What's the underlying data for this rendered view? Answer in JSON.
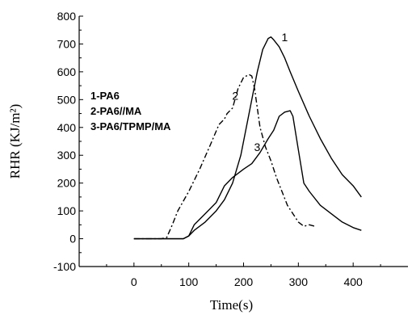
{
  "chart_data": {
    "type": "line",
    "xlabel": "Time(s)",
    "ylabel": "RHR (KJ/m²)",
    "xlim": [
      -100,
      500
    ],
    "ylim": [
      -100,
      800
    ],
    "x_ticks": [
      0,
      100,
      200,
      300,
      400
    ],
    "y_ticks": [
      -100,
      0,
      100,
      200,
      300,
      400,
      500,
      600,
      700,
      800
    ],
    "grid": false,
    "legend_entries": [
      "1-PA6",
      "2-PA6//MA",
      "3-PA6/TPMP/MA"
    ],
    "legend_placement": "left",
    "series": [
      {
        "name": "1",
        "style": "solid",
        "x": [
          0,
          60,
          90,
          100,
          110,
          130,
          150,
          165,
          180,
          195,
          205,
          215,
          225,
          235,
          245,
          250,
          255,
          265,
          275,
          285,
          300,
          320,
          340,
          360,
          380,
          400,
          415
        ],
        "y": [
          0,
          0,
          0,
          10,
          30,
          60,
          100,
          140,
          200,
          300,
          400,
          500,
          600,
          680,
          720,
          725,
          715,
          690,
          650,
          600,
          530,
          440,
          360,
          290,
          230,
          190,
          150
        ]
      },
      {
        "name": "2",
        "style": "dashdot",
        "x": [
          0,
          50,
          60,
          70,
          80,
          100,
          120,
          140,
          155,
          165,
          170,
          180,
          190,
          200,
          210,
          215,
          220,
          230,
          240,
          250,
          260,
          270,
          280,
          290,
          300,
          310,
          320,
          330
        ],
        "y": [
          0,
          0,
          5,
          50,
          100,
          170,
          250,
          340,
          410,
          430,
          450,
          470,
          540,
          580,
          590,
          585,
          540,
          400,
          330,
          280,
          220,
          170,
          120,
          90,
          60,
          45,
          50,
          45
        ]
      },
      {
        "name": "3",
        "style": "solid",
        "x": [
          0,
          60,
          90,
          100,
          110,
          130,
          150,
          165,
          180,
          200,
          215,
          230,
          245,
          255,
          265,
          275,
          285,
          290,
          300,
          310,
          320,
          340,
          360,
          380,
          400,
          415
        ],
        "y": [
          0,
          0,
          0,
          10,
          50,
          90,
          130,
          190,
          220,
          250,
          270,
          310,
          360,
          390,
          440,
          455,
          460,
          440,
          320,
          200,
          170,
          120,
          90,
          60,
          40,
          30
        ]
      }
    ],
    "curve_labels": [
      {
        "text": "1",
        "x": 275,
        "y": 710
      },
      {
        "text": "2",
        "x": 185,
        "y": 500
      },
      {
        "text": "3",
        "x": 225,
        "y": 315
      }
    ]
  }
}
